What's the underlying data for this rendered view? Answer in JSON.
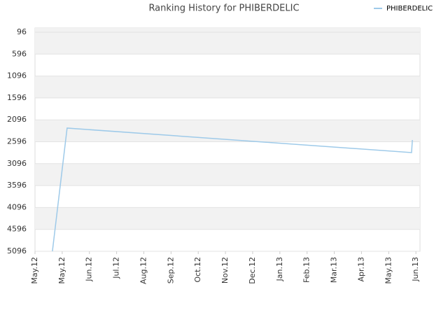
{
  "chart_data": {
    "type": "line",
    "title": "Ranking History for PHIBERDELIC",
    "series": [
      {
        "name": "PHIBERDELIC",
        "color": "#9ecae9",
        "x": [
          0.64,
          1.18,
          13.84,
          13.87
        ],
        "values": [
          5096,
          2284,
          2843,
          2556
        ]
      }
    ],
    "xlim": [
      0,
      14.15
    ],
    "xticks": [
      {
        "value": 0,
        "label": "May.12"
      },
      {
        "value": 1,
        "label": "May.12"
      },
      {
        "value": 2,
        "label": "Jun.12"
      },
      {
        "value": 3,
        "label": "Jul.12"
      },
      {
        "value": 4,
        "label": "Aug.12"
      },
      {
        "value": 5,
        "label": "Sep.12"
      },
      {
        "value": 6,
        "label": "Oct.12"
      },
      {
        "value": 7,
        "label": "Nov.12"
      },
      {
        "value": 8,
        "label": "Dec.12"
      },
      {
        "value": 9,
        "label": "Jan.13"
      },
      {
        "value": 10,
        "label": "Feb.13"
      },
      {
        "value": 11,
        "label": "Mar.13"
      },
      {
        "value": 12,
        "label": "Apr.13"
      },
      {
        "value": 13,
        "label": "May.13"
      },
      {
        "value": 14,
        "label": "Jun.13"
      }
    ],
    "ylim": [
      5096,
      0
    ],
    "yticks": [
      96,
      596,
      1096,
      1596,
      2096,
      2596,
      3096,
      3596,
      4096,
      4596,
      5096
    ],
    "grid": true,
    "legend": "top-right"
  }
}
